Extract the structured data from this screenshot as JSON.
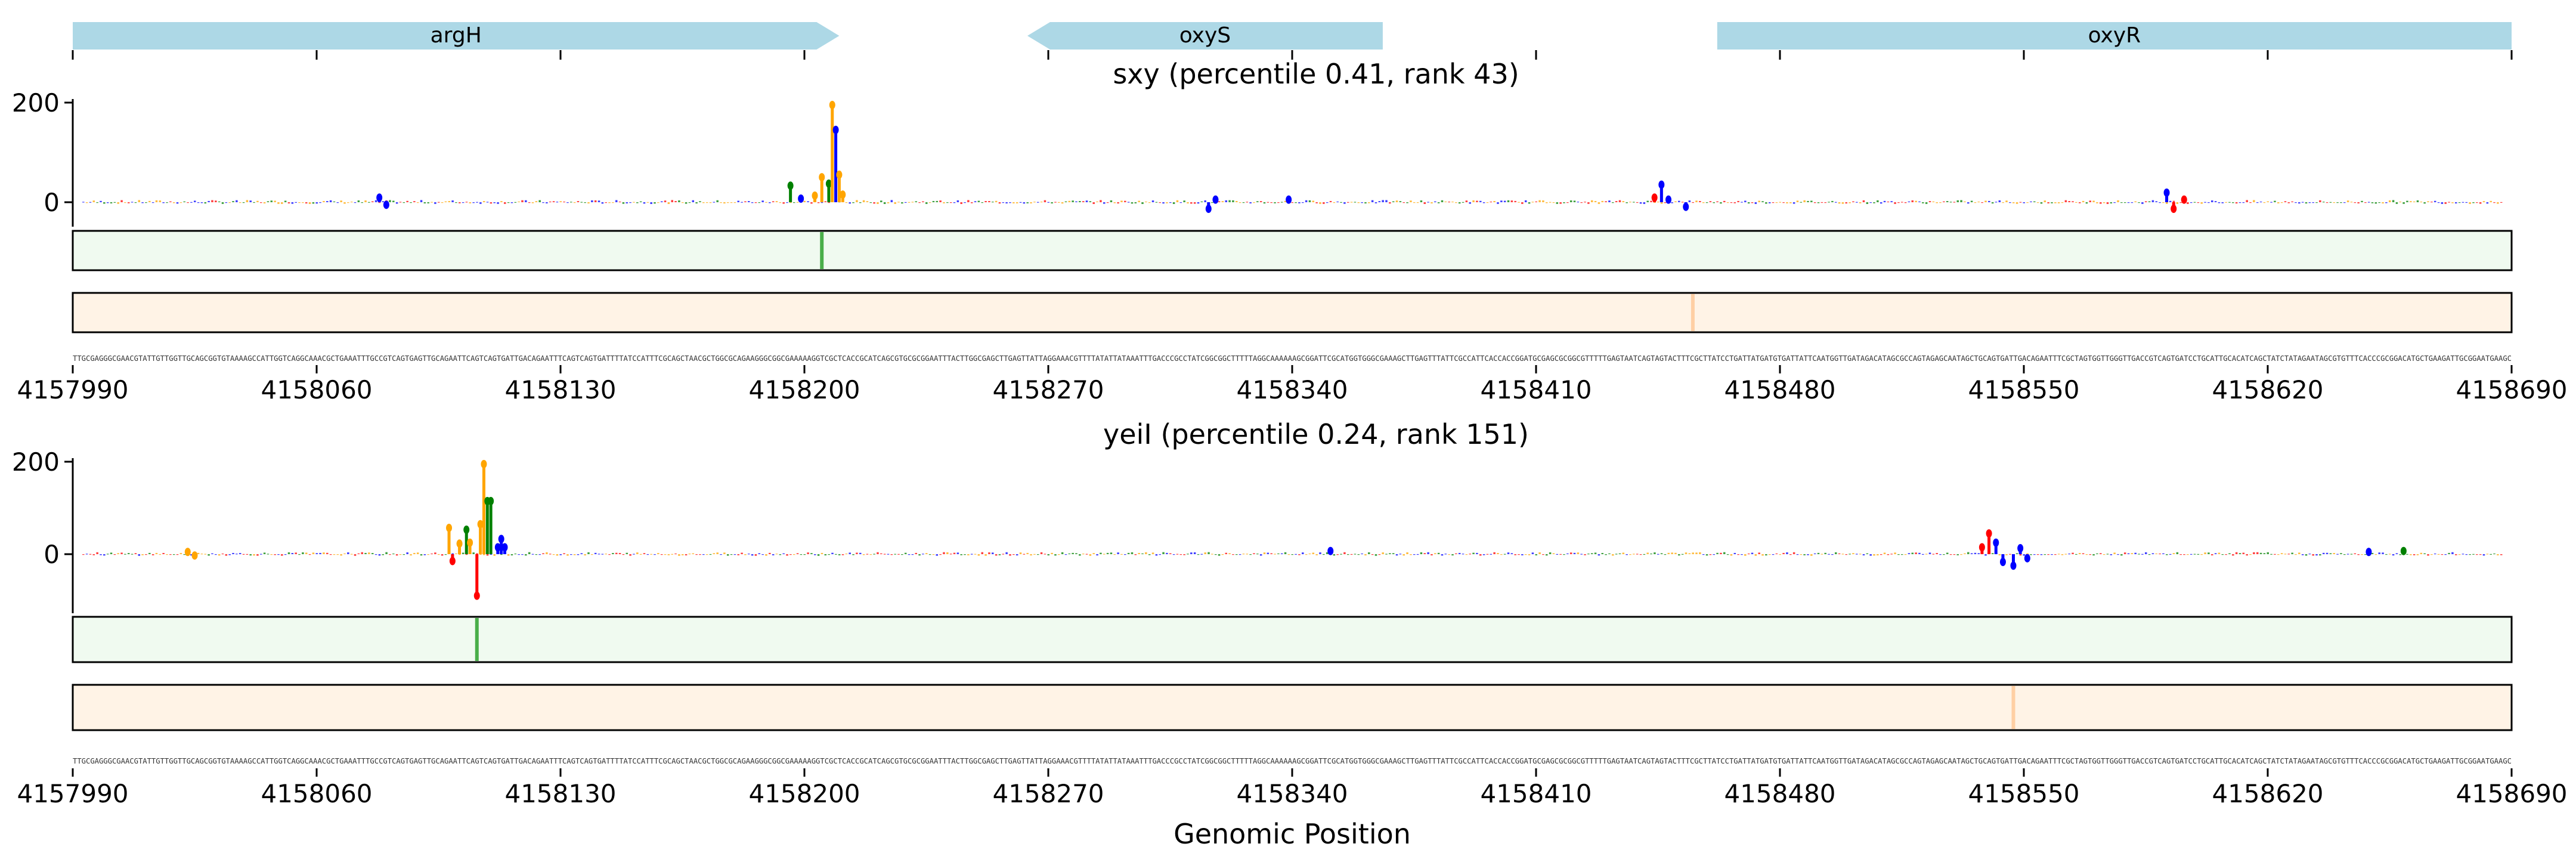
{
  "chart_data": [
    {
      "type": "gene_annotation",
      "genes": [
        {
          "name": "argH",
          "start": 4157990,
          "end": 4158210,
          "strand": "+",
          "color": "#add8e6"
        },
        {
          "name": "oxyS",
          "start": 4158264,
          "end": 4158366,
          "strand": "-",
          "color": "#add8e6"
        },
        {
          "name": "oxyR",
          "start": 4158462,
          "end": 4158690,
          "strand": "+",
          "color": "#add8e6"
        }
      ],
      "xlim": [
        4157990,
        4158690
      ]
    },
    {
      "type": "sequence_logo_attribution",
      "title": "sxy (percentile 0.41, rank 43)",
      "ylim": [
        -105,
        210
      ],
      "yticks": [
        0,
        200
      ],
      "xlim": [
        4157990,
        4158690
      ],
      "peaks": [
        {
          "x": 4158196,
          "value": 38,
          "base": "G"
        },
        {
          "x": 4158199,
          "value": 12,
          "base": "C"
        },
        {
          "x": 4158203,
          "value": 18,
          "base": "A"
        },
        {
          "x": 4158205,
          "value": 55,
          "base": "A"
        },
        {
          "x": 4158207,
          "value": 42,
          "base": "G"
        },
        {
          "x": 4158208,
          "value": 200,
          "base": "A"
        },
        {
          "x": 4158209,
          "value": 150,
          "base": "C"
        },
        {
          "x": 4158210,
          "value": 60,
          "base": "A"
        },
        {
          "x": 4158211,
          "value": 20,
          "base": "A"
        },
        {
          "x": 4158078,
          "value": 14,
          "base": "C"
        },
        {
          "x": 4158080,
          "value": -10,
          "base": "C"
        },
        {
          "x": 4158316,
          "value": -18,
          "base": "C"
        },
        {
          "x": 4158318,
          "value": 10,
          "base": "C"
        },
        {
          "x": 4158339,
          "value": 10,
          "base": "C"
        },
        {
          "x": 4158444,
          "value": 14,
          "base": "T"
        },
        {
          "x": 4158446,
          "value": 40,
          "base": "C"
        },
        {
          "x": 4158448,
          "value": 10,
          "base": "C"
        },
        {
          "x": 4158453,
          "value": -14,
          "base": "C"
        },
        {
          "x": 4158591,
          "value": 24,
          "base": "C"
        },
        {
          "x": 4158593,
          "value": -18,
          "base": "T"
        },
        {
          "x": 4158596,
          "value": 10,
          "base": "T"
        }
      ],
      "highlight_tracks": [
        {
          "name": "green track",
          "color": "#2ca02c",
          "bg": "#f0faf0",
          "marks": [
            4158205
          ]
        },
        {
          "name": "orange track",
          "color": "#ff7f0e",
          "bg": "#fff3e6",
          "marks": [
            4158455
          ]
        }
      ],
      "sequence": "TTGCGAGGGCGAACGTATTGTTGGTTGCAGCGGTGTAAAAGCCATTGGTCAGGCAAACGCTGAAATTTGCCGTCAGTGAGTTGCAGAATTCAGTCAGTGATTGACAGAATTTCAGTCAGTGATTTTATCCATTTCGCAGCTAACGCTGGCGCAGAAGGGCGGCGAAAAAGGTCGCTCACCGCATCAGCGTGCGCGGAATTTACTTGGCGAGCTTGAGTTATTAGGAAACGTTTTATATTATAAATTTGACCCGCCTATCGGCGGCTTTTTAGGCAAAAAAGCGGATTCGCATGGTGGGCGAAAGCTTGAGTTTATTCGCCATTCACCACCGGATGCGAGCGCGGCGTTTTTGAGTAATCAGTAGTACTTTCGCTTATCCTGATTATGATGTGATTATTCAATGGTTGATAGACATAGCGCCAGTAGAGCAATAGCTGCAGTGATTGACAGAATTTCGCTAGTGGTTGGGTTGACCGTCAGTGATCCTGCATTGCACATCAGCTATCTATAGAATAGCGTGTTTCACCCGCGGACATGCTGAAGATTGCGGAATGAAGC",
      "xticks": [
        4157990,
        4158060,
        4158130,
        4158200,
        4158270,
        4158340,
        4158410,
        4158480,
        4158550,
        4158620,
        4158690
      ]
    },
    {
      "type": "sequence_logo_attribution",
      "title": "yeiI (percentile 0.24, rank 151)",
      "ylim": [
        -105,
        210
      ],
      "yticks": [
        0,
        200
      ],
      "xlim": [
        4157990,
        4158690
      ],
      "peaks": [
        {
          "x": 4158023,
          "value": 10,
          "base": "A"
        },
        {
          "x": 4158025,
          "value": -8,
          "base": "A"
        },
        {
          "x": 4158098,
          "value": 62,
          "base": "A"
        },
        {
          "x": 4158099,
          "value": -20,
          "base": "T"
        },
        {
          "x": 4158101,
          "value": 28,
          "base": "A"
        },
        {
          "x": 4158103,
          "value": 58,
          "base": "G"
        },
        {
          "x": 4158104,
          "value": 30,
          "base": "A"
        },
        {
          "x": 4158106,
          "value": -95,
          "base": "T"
        },
        {
          "x": 4158107,
          "value": 70,
          "base": "A"
        },
        {
          "x": 4158108,
          "value": 200,
          "base": "A"
        },
        {
          "x": 4158109,
          "value": 120,
          "base": "G"
        },
        {
          "x": 4158110,
          "value": 120,
          "base": "G"
        },
        {
          "x": 4158112,
          "value": 20,
          "base": "C"
        },
        {
          "x": 4158113,
          "value": 38,
          "base": "C"
        },
        {
          "x": 4158114,
          "value": 20,
          "base": "C"
        },
        {
          "x": 4158351,
          "value": 12,
          "base": "C"
        },
        {
          "x": 4158538,
          "value": 20,
          "base": "T"
        },
        {
          "x": 4158540,
          "value": 50,
          "base": "T"
        },
        {
          "x": 4158542,
          "value": 30,
          "base": "C"
        },
        {
          "x": 4158544,
          "value": -22,
          "base": "C"
        },
        {
          "x": 4158547,
          "value": -30,
          "base": "C"
        },
        {
          "x": 4158549,
          "value": 18,
          "base": "C"
        },
        {
          "x": 4158551,
          "value": -14,
          "base": "C"
        },
        {
          "x": 4158649,
          "value": 10,
          "base": "C"
        },
        {
          "x": 4158659,
          "value": 12,
          "base": "G"
        }
      ],
      "highlight_tracks": [
        {
          "name": "green track",
          "color": "#2ca02c",
          "bg": "#f0faf0",
          "marks": [
            4158106
          ]
        },
        {
          "name": "orange track",
          "color": "#ff7f0e",
          "bg": "#fff3e6",
          "marks": [
            4158547
          ]
        }
      ],
      "sequence": "TTGCGAGGGCGAACGTATTGTTGGTTGCAGCGGTGTAAAAGCCATTGGTCAGGCAAACGCTGAAATTTGCCGTCAGTGAGTTGCAGAATTCAGTCAGTGATTGACAGAATTTCAGTCAGTGATTTTATCCATTTCGCAGCTAACGCTGGCGCAGAAGGGCGGCGAAAAAGGTCGCTCACCGCATCAGCGTGCGCGGAATTTACTTGGCGAGCTTGAGTTATTAGGAAACGTTTTATATTATAAATTTGACCCGCCTATCGGCGGCTTTTTAGGCAAAAAAGCGGATTCGCATGGTGGGCGAAAGCTTGAGTTTATTCGCCATTCACCACCGGATGCGAGCGCGGCGTTTTTGAGTAATCAGTAGTACTTTCGCTTATCCTGATTATGATGTGATTATTCAATGGTTGATAGACATAGCGCCAGTAGAGCAATAGCTGCAGTGATTGACAGAATTTCGCTAGTGGTTGGGTTGACCGTCAGTGATCCTGCATTGCACATCAGCTATCTATAGAATAGCGTGTTTCACCCGCGGACATGCTGAAGATTGCGGAATGAAGC",
      "xticks": [
        4157990,
        4158060,
        4158130,
        4158200,
        4158270,
        4158340,
        4158410,
        4158480,
        4158550,
        4158620,
        4158690
      ],
      "xlabel": "Genomic Position"
    }
  ],
  "colors": {
    "A": "#ffa500",
    "C": "#0000ff",
    "G": "#008000",
    "T": "#ff0000",
    "axis": "#000000",
    "gene": "#add8e6"
  }
}
